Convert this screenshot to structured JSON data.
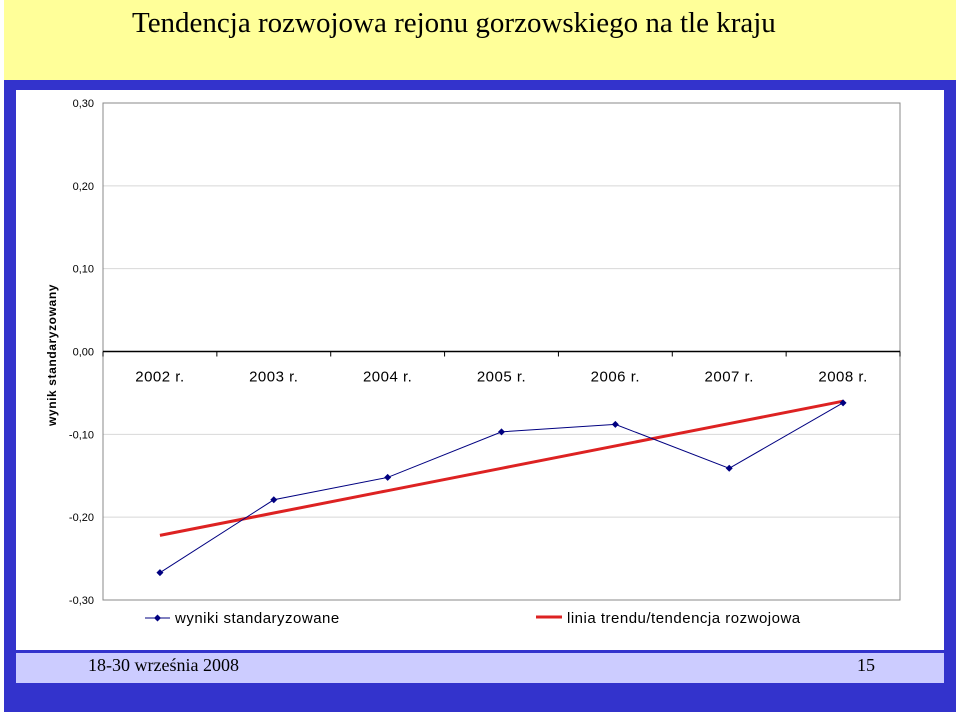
{
  "slide": {
    "title": "Tendencja rozwojowa rejonu gorzowskiego na tle kraju",
    "footer_date": "18-30 września 2008",
    "page_number": "15"
  },
  "colors": {
    "title_background": "#ffff99",
    "frame": "#3333cc",
    "footer_background": "#ccccff",
    "series_line": "#000080",
    "trend_line": "#dd2222"
  },
  "chart_data": {
    "type": "line",
    "title": "",
    "xlabel": "",
    "ylabel": "wynik standaryzowany",
    "ylim": [
      -0.3,
      0.3
    ],
    "yticks": [
      0.3,
      0.2,
      0.1,
      0.0,
      -0.1,
      -0.2,
      -0.3
    ],
    "ytick_labels": [
      "0,30",
      "0,20",
      "0,10",
      "0,00",
      "-0,10",
      "-0,20",
      "-0,30"
    ],
    "grid": true,
    "legend_position": "bottom",
    "categories": [
      "2002 r.",
      "2003 r.",
      "2004 r.",
      "2005 r.",
      "2006 r.",
      "2007 r.",
      "2008 r."
    ],
    "series": [
      {
        "name": "wyniki standaryzowane",
        "values": [
          -0.267,
          -0.179,
          -0.152,
          -0.097,
          -0.088,
          -0.141,
          -0.062
        ],
        "marker": "diamond",
        "color": "#000080"
      },
      {
        "name": "linia trendu/tendencja rozwojowa",
        "values": [
          -0.222,
          -0.195,
          -0.168,
          -0.141,
          -0.114,
          -0.087,
          -0.06
        ],
        "marker": "none",
        "color": "#dd2222"
      }
    ]
  }
}
